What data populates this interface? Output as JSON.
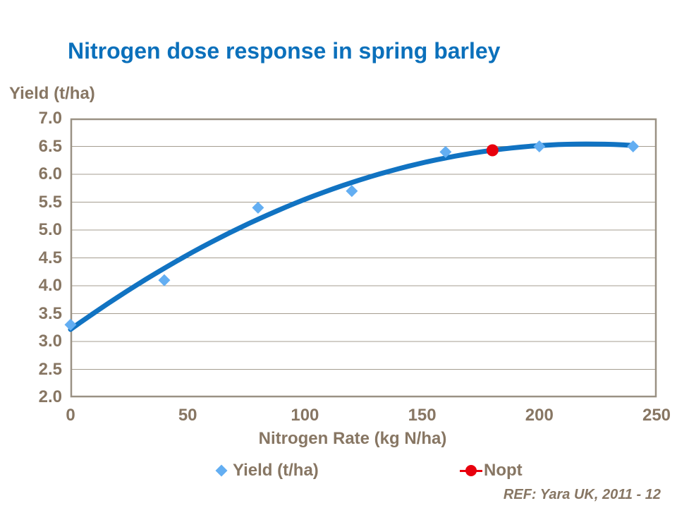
{
  "slide": {
    "title": "Nitrogen dose response in spring barley"
  },
  "footer": {
    "ref": "REF: Yara UK, 2011 - 12"
  },
  "colors": {
    "title-blue": "#0B70BB",
    "text-brown": "#877663",
    "curve-blue": "#1173C2",
    "marker-blue": "#63AEF2",
    "nopt-red": "#E8000D",
    "grid-line": "#A59D90",
    "frame": "#9A9184"
  },
  "chart_data": {
    "type": "scatter",
    "title": "Nitrogen dose response in spring barley",
    "xlabel": "Nitrogen Rate (kg N/ha)",
    "ylabel": "Yield (t/ha)",
    "xlim": [
      0,
      250
    ],
    "ylim": [
      2.0,
      7.0
    ],
    "xticks": [
      "0",
      "50",
      "100",
      "150",
      "200",
      "250"
    ],
    "yticks": [
      "7.0",
      "6.5",
      "6.0",
      "5.5",
      "5.0",
      "4.5",
      "4.0",
      "3.5",
      "3.0",
      "2.5",
      "2.0"
    ],
    "grid": "horizontal",
    "legend_position": "bottom",
    "series": [
      {
        "name": "Yield (t/ha)",
        "type": "scatter",
        "marker": "diamond",
        "color": "#63AEF2",
        "points": [
          [
            0,
            3.3
          ],
          [
            40,
            4.1
          ],
          [
            80,
            5.4
          ],
          [
            120,
            5.7
          ],
          [
            160,
            6.4
          ],
          [
            200,
            6.5
          ],
          [
            240,
            6.5
          ]
        ],
        "trendline": {
          "type": "quadratic-fit",
          "color": "#1173C2"
        }
      },
      {
        "name": "Nopt",
        "type": "point",
        "marker": "circle",
        "color": "#E8000D",
        "points": [
          [
            180,
            6.43
          ]
        ]
      }
    ]
  }
}
